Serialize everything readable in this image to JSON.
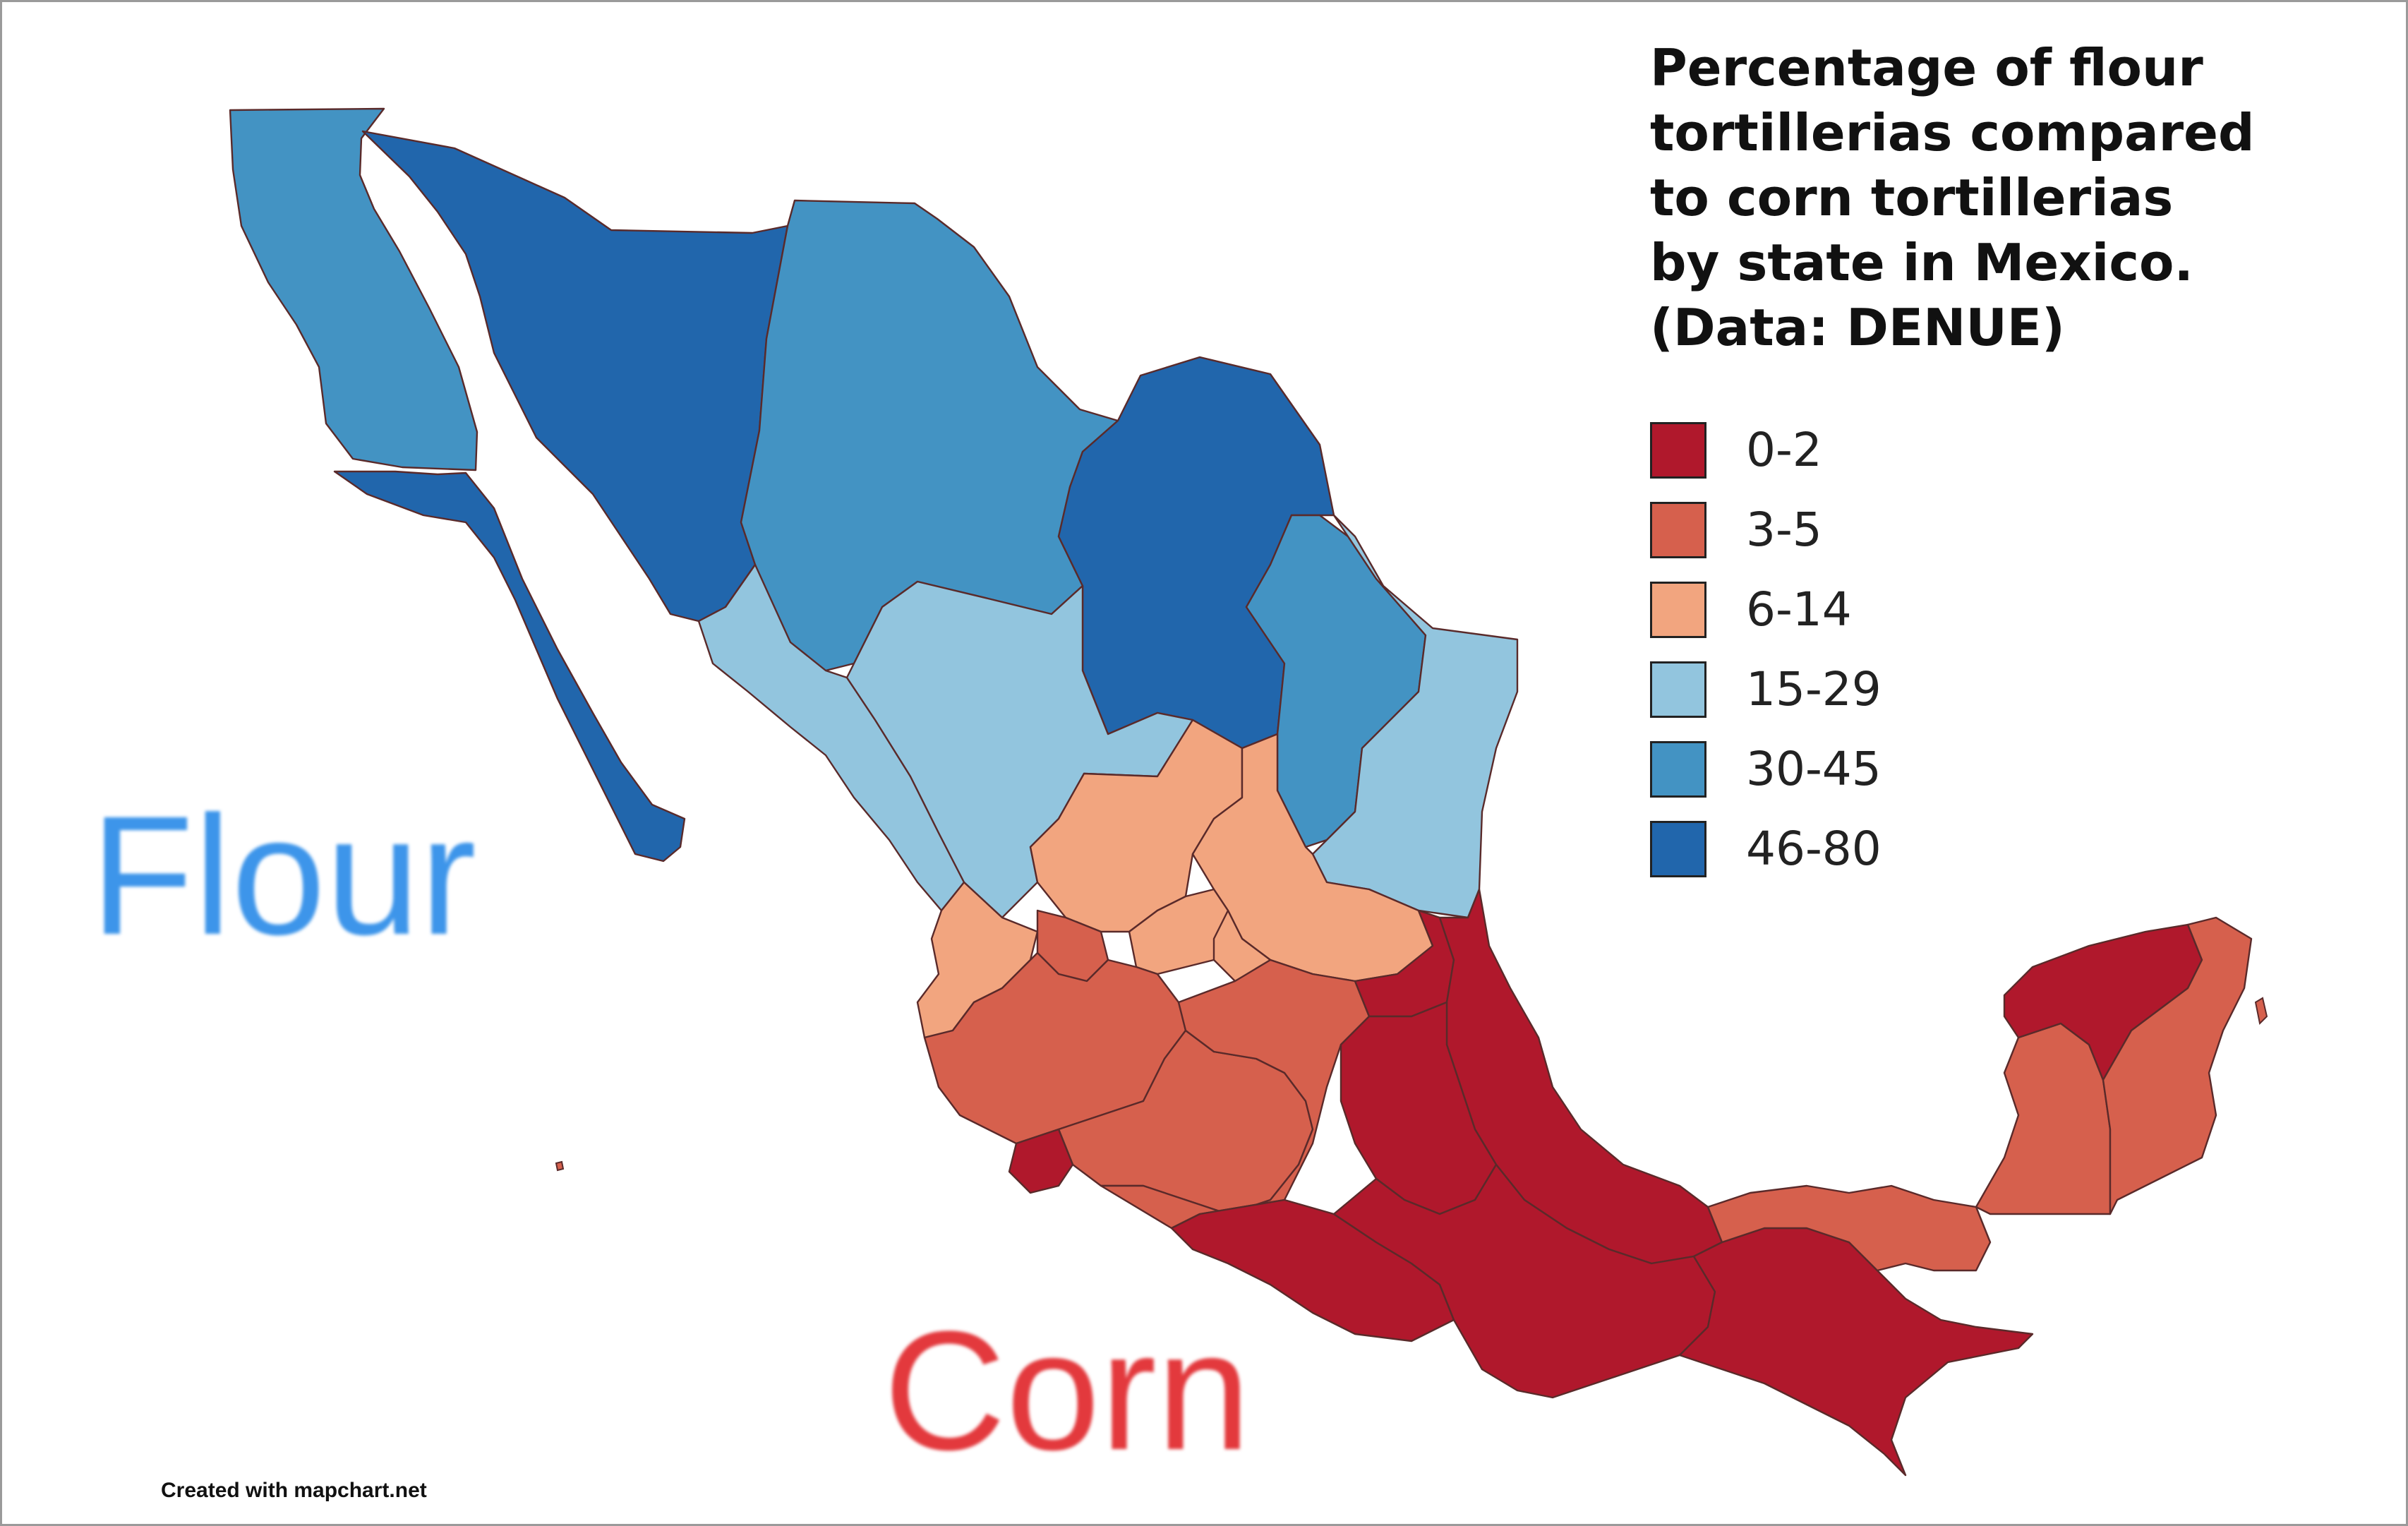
{
  "title_lines": [
    "Percentage of flour",
    "tortillerias compared",
    "to corn tortillerias",
    "by state in Mexico.",
    "(Data: DENUE)"
  ],
  "legend": [
    {
      "label": "0-2",
      "color": "#b0182c"
    },
    {
      "label": "3-5",
      "color": "#d6604d"
    },
    {
      "label": "6-14",
      "color": "#f2a57f"
    },
    {
      "label": "15-29",
      "color": "#92c5de"
    },
    {
      "label": "30-45",
      "color": "#4393c3"
    },
    {
      "label": "46-80",
      "color": "#2166ac"
    }
  ],
  "annotations": {
    "flour": {
      "text": "Flour",
      "color": "#3d95ea"
    },
    "corn": {
      "text": "Corn",
      "color": "#e3393d"
    }
  },
  "credit": "Created with mapchart.net",
  "regions": [
    {
      "name": "Baja California",
      "bin": "30-45"
    },
    {
      "name": "Baja California Sur",
      "bin": "46-80"
    },
    {
      "name": "Sonora",
      "bin": "46-80"
    },
    {
      "name": "Chihuahua",
      "bin": "30-45"
    },
    {
      "name": "Coahuila",
      "bin": "46-80"
    },
    {
      "name": "Nuevo León",
      "bin": "30-45"
    },
    {
      "name": "Tamaulipas",
      "bin": "15-29"
    },
    {
      "name": "Sinaloa",
      "bin": "15-29"
    },
    {
      "name": "Durango",
      "bin": "15-29"
    },
    {
      "name": "Zacatecas",
      "bin": "6-14"
    },
    {
      "name": "San Luis Potosí",
      "bin": "6-14"
    },
    {
      "name": "Nayarit",
      "bin": "6-14"
    },
    {
      "name": "Aguascalientes",
      "bin": "3-5"
    },
    {
      "name": "Guanajuato",
      "bin": "6-14"
    },
    {
      "name": "Querétaro",
      "bin": "6-14"
    },
    {
      "name": "Jalisco",
      "bin": "3-5"
    },
    {
      "name": "Michoacán",
      "bin": "3-5"
    },
    {
      "name": "Colima",
      "bin": "0-2"
    },
    {
      "name": "Guerrero",
      "bin": "3-5"
    },
    {
      "name": "Guerrero coast",
      "bin": "0-2"
    },
    {
      "name": "Hidalgo",
      "bin": "0-2"
    },
    {
      "name": "Veracruz",
      "bin": "0-2"
    },
    {
      "name": "Puebla",
      "bin": "0-2"
    },
    {
      "name": "Oaxaca",
      "bin": "0-2"
    },
    {
      "name": "Chiapas",
      "bin": "0-2"
    },
    {
      "name": "Tabasco",
      "bin": "3-5"
    },
    {
      "name": "Campeche",
      "bin": "3-5"
    },
    {
      "name": "Yucatán",
      "bin": "0-2"
    },
    {
      "name": "Quintana Roo",
      "bin": "3-5"
    }
  ]
}
